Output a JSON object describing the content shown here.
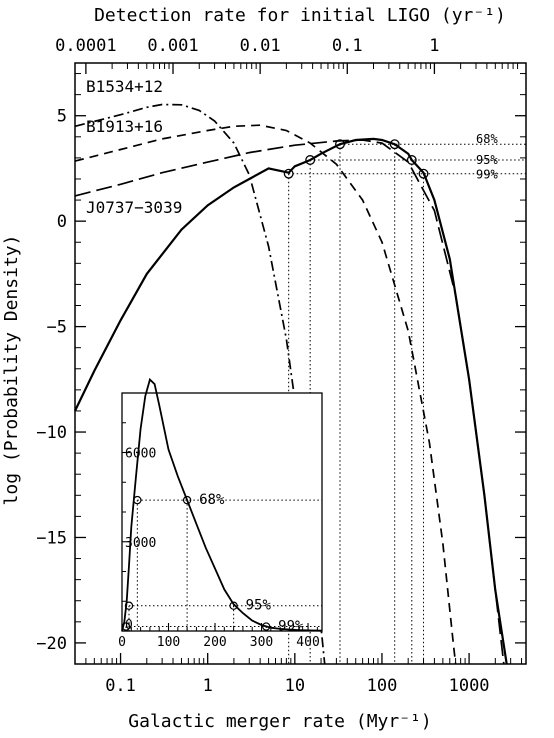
{
  "chart_data": [
    {
      "id": "main",
      "type": "line",
      "xscale": "log",
      "xlabel": "Galactic merger rate (Myr⁻¹)",
      "ylabel": "log (Probability Density)",
      "top_xlabel": "Detection rate for initial LIGO (yr⁻¹)",
      "xlim": [
        0.03,
        4500
      ],
      "ylim": [
        -21,
        7.5
      ],
      "x_ticks": [
        {
          "value": 0.1,
          "label": "0.1"
        },
        {
          "value": 1,
          "label": "1"
        },
        {
          "value": 10,
          "label": "10"
        },
        {
          "value": 100,
          "label": "100"
        },
        {
          "value": 1000,
          "label": "1000"
        }
      ],
      "y_ticks": [
        {
          "value": 5,
          "label": "5"
        },
        {
          "value": 0,
          "label": "0"
        },
        {
          "value": -5,
          "label": "−5"
        },
        {
          "value": -10,
          "label": "−10"
        },
        {
          "value": -15,
          "label": "−15"
        },
        {
          "value": -20,
          "label": "−20"
        }
      ],
      "top_ticks": [
        {
          "value": 0.0001,
          "rate": 0.04,
          "label": "0.0001"
        },
        {
          "value": 0.001,
          "rate": 0.4,
          "label": "0.001"
        },
        {
          "value": 0.01,
          "rate": 4,
          "label": "0.01"
        },
        {
          "value": 0.1,
          "rate": 40,
          "label": "0.1"
        },
        {
          "value": 1,
          "rate": 400,
          "label": "1"
        }
      ],
      "series": [
        {
          "name": "B1534+12",
          "style": "dash-dot",
          "points": [
            [
              0.03,
              4.5
            ],
            [
              0.1,
              5.05
            ],
            [
              0.2,
              5.4
            ],
            [
              0.3,
              5.53
            ],
            [
              0.5,
              5.52
            ],
            [
              0.8,
              5.25
            ],
            [
              1.2,
              4.75
            ],
            [
              2,
              3.7
            ],
            [
              3,
              2.2
            ],
            [
              5,
              -1.2
            ],
            [
              8,
              -5.6
            ],
            [
              12,
              -10.8
            ],
            [
              16,
              -15.2
            ],
            [
              20,
              -19.3
            ],
            [
              22,
              -21
            ]
          ]
        },
        {
          "name": "B1913+16",
          "style": "dash",
          "points": [
            [
              0.03,
              2.85
            ],
            [
              0.1,
              3.4
            ],
            [
              0.3,
              3.9
            ],
            [
              1,
              4.3
            ],
            [
              2,
              4.5
            ],
            [
              4,
              4.55
            ],
            [
              8,
              4.3
            ],
            [
              15,
              3.7
            ],
            [
              30,
              2.7
            ],
            [
              60,
              1.0
            ],
            [
              100,
              -1.0
            ],
            [
              200,
              -5.2
            ],
            [
              350,
              -10.5
            ],
            [
              500,
              -15.3
            ],
            [
              650,
              -19.8
            ],
            [
              700,
              -21
            ]
          ]
        },
        {
          "name": "",
          "style": "long-dash",
          "points": [
            [
              0.03,
              1.2
            ],
            [
              0.1,
              1.75
            ],
            [
              0.3,
              2.3
            ],
            [
              1,
              2.8
            ],
            [
              3,
              3.25
            ],
            [
              10,
              3.6
            ],
            [
              30,
              3.8
            ],
            [
              60,
              3.85
            ],
            [
              100,
              3.7
            ],
            [
              200,
              2.8
            ],
            [
              400,
              0.5
            ],
            [
              700,
              -3.5
            ],
            [
              1000,
              -7.5
            ],
            [
              1500,
              -13
            ],
            [
              2000,
              -17.5
            ],
            [
              2500,
              -21
            ]
          ]
        },
        {
          "name": "J0737−3039",
          "style": "solid",
          "points": [
            [
              0.03,
              -9.0
            ],
            [
              0.05,
              -7.1
            ],
            [
              0.1,
              -4.7
            ],
            [
              0.2,
              -2.5
            ],
            [
              0.5,
              -0.4
            ],
            [
              1,
              0.75
            ],
            [
              2,
              1.6
            ],
            [
              3,
              2.0
            ],
            [
              5,
              2.5
            ],
            [
              8.5,
              2.3
            ],
            [
              10,
              2.6
            ],
            [
              15,
              2.9
            ],
            [
              20,
              3.2
            ],
            [
              33,
              3.65
            ],
            [
              50,
              3.85
            ],
            [
              80,
              3.9
            ],
            [
              100,
              3.85
            ],
            [
              140,
              3.65
            ],
            [
              200,
              3.2
            ],
            [
              220,
              2.9
            ],
            [
              300,
              2.3
            ],
            [
              400,
              1.0
            ],
            [
              600,
              -1.8
            ],
            [
              800,
              -5
            ],
            [
              1000,
              -7.5
            ],
            [
              1500,
              -13
            ],
            [
              2000,
              -17.5
            ],
            [
              2700,
              -21
            ]
          ]
        }
      ],
      "confidence_lines": [
        {
          "label": "68%",
          "y": 3.65,
          "x_low": 33,
          "x_high": 140
        },
        {
          "label": "95%",
          "y": 2.9,
          "x_low": 15,
          "x_high": 220
        },
        {
          "label": "99%",
          "y": 2.25,
          "x_low": 8.5,
          "x_high": 300
        }
      ],
      "curve_labels": [
        {
          "text": "B1534+12"
        },
        {
          "text": "B1913+16"
        },
        {
          "text": "J0737−3039"
        }
      ]
    },
    {
      "id": "inset",
      "type": "line",
      "xscale": "linear",
      "xlim": [
        0,
        430
      ],
      "ylim": [
        0,
        8000
      ],
      "x_ticks": [
        {
          "value": 0,
          "label": "0"
        },
        {
          "value": 100,
          "label": "100"
        },
        {
          "value": 200,
          "label": "200"
        },
        {
          "value": 300,
          "label": "300"
        },
        {
          "value": 400,
          "label": "400"
        }
      ],
      "y_ticks": [
        {
          "value": 0,
          "label": "0"
        },
        {
          "value": 3000,
          "label": "3000"
        },
        {
          "value": 6000,
          "label": "6000"
        }
      ],
      "series": [
        {
          "name": "",
          "style": "solid",
          "points": [
            [
              0,
              0
            ],
            [
              5,
              300
            ],
            [
              10,
              1000
            ],
            [
              15,
              2200
            ],
            [
              20,
              3500
            ],
            [
              30,
              5200
            ],
            [
              40,
              6800
            ],
            [
              50,
              7900
            ],
            [
              60,
              8450
            ],
            [
              70,
              8300
            ],
            [
              80,
              7600
            ],
            [
              100,
              6100
            ],
            [
              120,
              5200
            ],
            [
              140,
              4400
            ],
            [
              160,
              3600
            ],
            [
              180,
              2800
            ],
            [
              200,
              2100
            ],
            [
              220,
              1400
            ],
            [
              240,
              900
            ],
            [
              260,
              600
            ],
            [
              280,
              350
            ],
            [
              300,
              200
            ],
            [
              320,
              110
            ],
            [
              340,
              70
            ],
            [
              380,
              30
            ],
            [
              430,
              10
            ]
          ]
        }
      ],
      "confidence_lines": [
        {
          "label": "68%",
          "y": 4400,
          "x_low": 33,
          "x_high": 140
        },
        {
          "label": "95%",
          "y": 850,
          "x_low": 15,
          "x_high": 240
        },
        {
          "label": "99%",
          "y": 150,
          "x_low": 8.5,
          "x_high": 310
        }
      ]
    }
  ]
}
